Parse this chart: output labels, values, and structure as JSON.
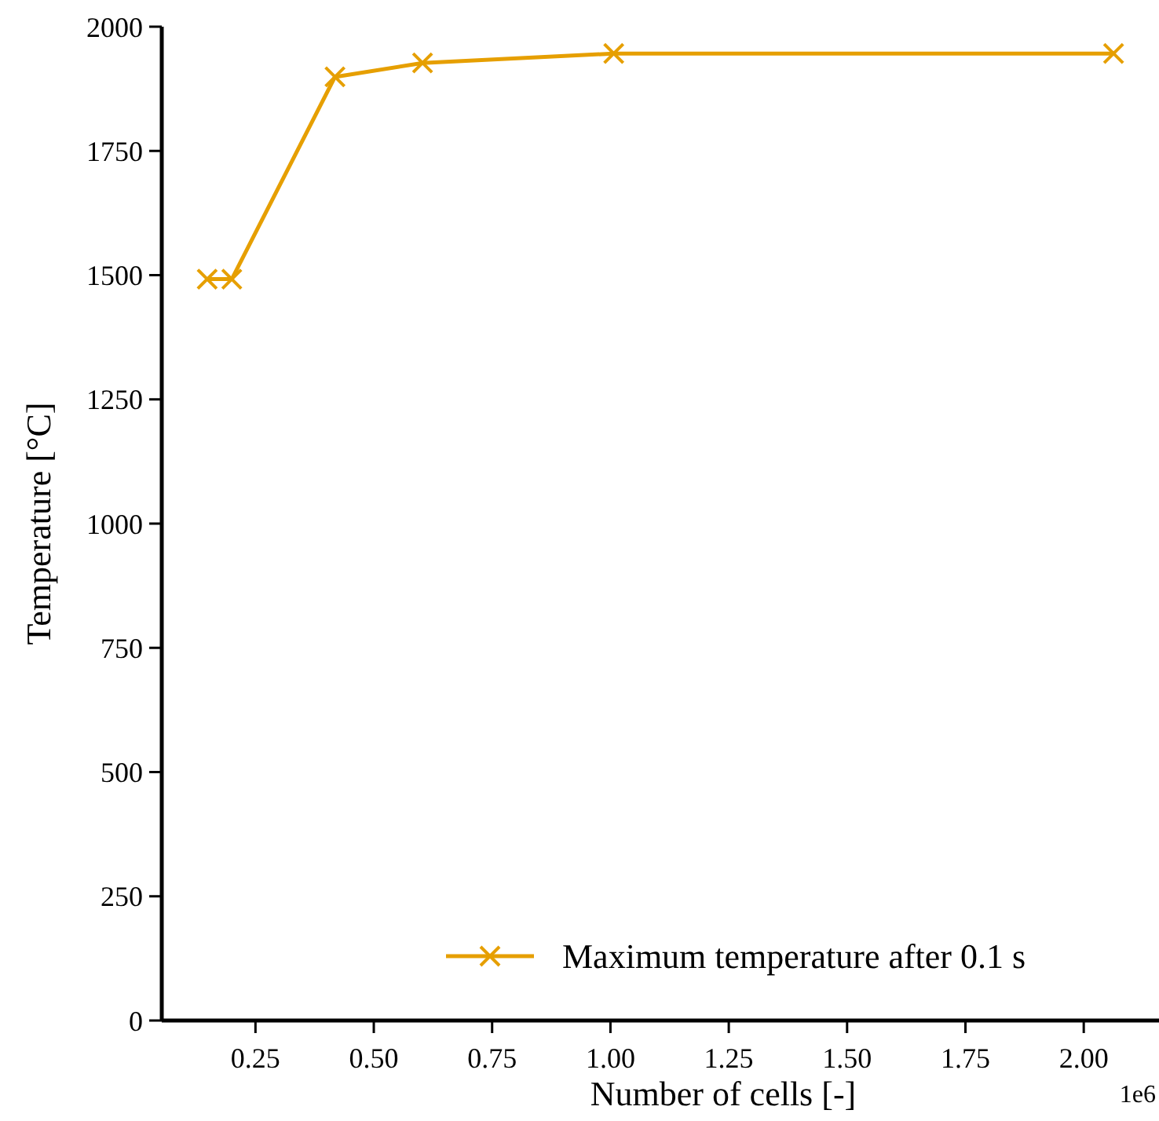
{
  "chart_data": {
    "type": "line",
    "xlabel": "Number of cells [-]",
    "ylabel": "Temperature [°C]",
    "annotations": [
      "1e6"
    ],
    "x": [
      0.148,
      0.2,
      0.418,
      0.603,
      1.007,
      2.063
    ],
    "series": [
      {
        "name": "Maximum temperature after 0.1 s",
        "color": "#e69f00",
        "values": [
          1492,
          1492,
          1899,
          1927,
          1946,
          1946
        ]
      }
    ],
    "xlim": [
      0.052,
      2.159
    ],
    "xticks": [
      0.25,
      {
        "value": 0.5,
        "label": "0.50"
      },
      0.75,
      {
        "value": 1,
        "label": "1.00"
      },
      1.25,
      {
        "value": 1.5,
        "label": "1.50"
      },
      1.75,
      {
        "value": 2,
        "label": "2.00"
      }
    ],
    "ylim": [
      0,
      2000
    ],
    "yticks": [
      0,
      250,
      500,
      750,
      1000,
      1250,
      1500,
      1750,
      2000
    ],
    "grid": false,
    "legend": "bottom right",
    "marker": "cross",
    "line_style": "solid"
  }
}
